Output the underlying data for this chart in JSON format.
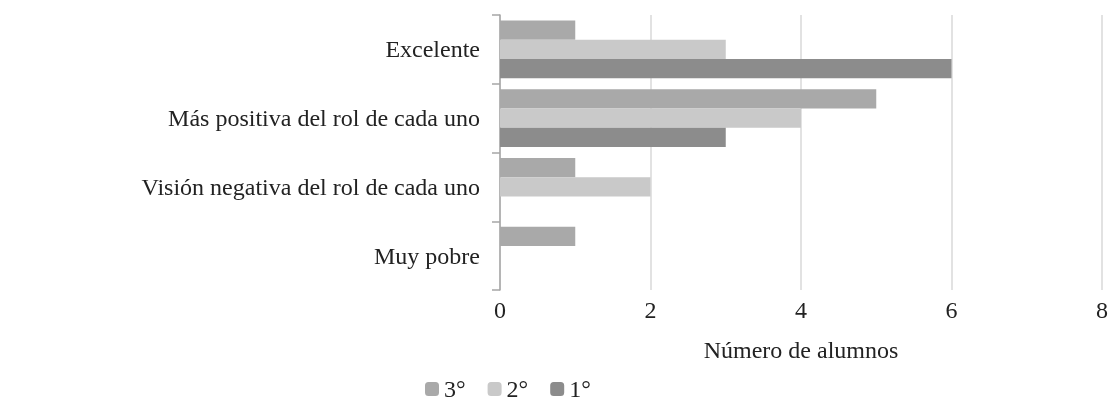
{
  "chart_data": {
    "type": "bar",
    "orientation": "horizontal",
    "xlabel": "Número de alumnos",
    "categories": [
      "Excelente",
      "Más positiva del rol de cada uno",
      "Visión negativa del rol de cada uno",
      "Muy pobre"
    ],
    "series": [
      {
        "name": "3°",
        "color": "#a9a9a9",
        "values": [
          1,
          5,
          1,
          1
        ]
      },
      {
        "name": "2°",
        "color": "#c9c9c9",
        "values": [
          3,
          4,
          2,
          0
        ]
      },
      {
        "name": "1°",
        "color": "#8c8c8c",
        "values": [
          6,
          3,
          0,
          0
        ]
      }
    ],
    "xlim": [
      0,
      8
    ],
    "xticks": [
      0,
      2,
      4,
      6,
      8
    ],
    "grid": "x",
    "legend": "bottom"
  }
}
